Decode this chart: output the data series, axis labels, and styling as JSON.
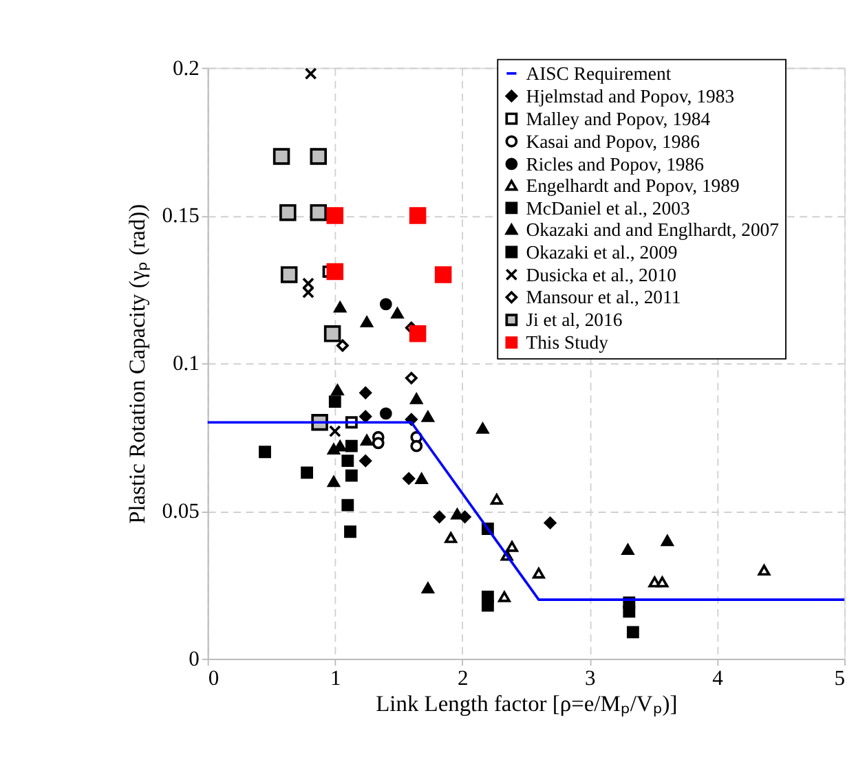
{
  "chart_data": {
    "type": "scatter",
    "xlabel": "Link Length factor [ρ=e/Mₚ/Vₚ)]",
    "ylabel": "Plastic Rotation Capacity (γₚ (rad))",
    "xlim": [
      0,
      5
    ],
    "xticks": [
      0,
      1,
      2,
      3,
      4,
      5
    ],
    "ylim": [
      0,
      0.2
    ],
    "yticks": [
      0,
      0.05,
      0.1,
      0.15,
      0.2
    ],
    "grid": true,
    "legend": "top right",
    "series": [
      {
        "name": "AISC Requirement",
        "type": "line",
        "color": "#0000ff",
        "marker": "none",
        "line_style": "solid",
        "x": [
          0,
          1.6,
          2.6,
          5
        ],
        "values": [
          0.08,
          0.08,
          0.02,
          0.02
        ]
      },
      {
        "name": "Hjelmstad and Popov, 1983",
        "color": "#000000",
        "marker": "diamond",
        "x": [
          1.24,
          1.24,
          1.24,
          1.6,
          1.58,
          1.82,
          2.02,
          2.69
        ],
        "values": [
          0.09,
          0.082,
          0.067,
          0.081,
          0.061,
          0.048,
          0.048,
          0.046
        ]
      },
      {
        "name": "Malley and Popov, 1984",
        "color": "#ffffff",
        "marker": "square",
        "x": [
          1.13,
          0.95
        ],
        "values": [
          0.08,
          0.131
        ]
      },
      {
        "name": "Kasai and Popov, 1986",
        "color": "#ffffff",
        "marker": "circle",
        "x": [
          1.34,
          1.34,
          1.64,
          1.64
        ],
        "values": [
          0.075,
          0.073,
          0.075,
          0.072
        ]
      },
      {
        "name": "Ricles and Popov, 1986",
        "color": "#000000",
        "marker": "circle",
        "x": [
          1.4,
          1.4
        ],
        "values": [
          0.12,
          0.083
        ]
      },
      {
        "name": "Engelhardt and Popov, 1989",
        "color": "#ffffff",
        "marker": "triangle",
        "x": [
          1.91,
          2.27,
          2.39,
          2.35,
          2.6,
          2.33,
          3.51,
          3.57,
          4.37
        ],
        "values": [
          0.041,
          0.054,
          0.038,
          0.035,
          0.029,
          0.021,
          0.026,
          0.026,
          0.03
        ]
      },
      {
        "name": "McDaniel et al., 2003",
        "color": "#000000",
        "marker": "square",
        "x": [
          0.45,
          0.78,
          2.2,
          2.2,
          2.2,
          3.31,
          3.31
        ],
        "values": [
          0.07,
          0.063,
          0.044,
          0.021,
          0.018,
          0.019,
          0.016
        ]
      },
      {
        "name": "Okazaki and and Englhardt, 2007",
        "color": "#000000",
        "marker": "triangle",
        "x": [
          1.04,
          1.25,
          1.49,
          1.02,
          1.64,
          1.73,
          2.16,
          0.99,
          1.04,
          1.25,
          0.99,
          1.68,
          1.96,
          1.73,
          3.3,
          3.61
        ],
        "values": [
          0.119,
          0.114,
          0.117,
          0.091,
          0.088,
          0.082,
          0.078,
          0.071,
          0.072,
          0.074,
          0.06,
          0.061,
          0.049,
          0.024,
          0.037,
          0.04
        ]
      },
      {
        "name": "Okazaki et al., 2009",
        "color": "#000000",
        "marker": "square",
        "x": [
          1.13,
          1.1,
          1.13,
          1.1,
          1.12,
          3.34,
          1.0
        ],
        "values": [
          0.072,
          0.067,
          0.062,
          0.052,
          0.043,
          0.009,
          0.087
        ]
      },
      {
        "name": "Dusicka et al., 2010",
        "color": "#000000",
        "marker": "cross",
        "x": [
          0.81,
          0.79,
          0.79,
          1.0
        ],
        "values": [
          0.198,
          0.127,
          0.124,
          0.077
        ]
      },
      {
        "name": "Mansour et al., 2011",
        "color": "#ffffff",
        "marker": "diamond",
        "x": [
          1.06,
          1.6,
          1.6
        ],
        "values": [
          0.106,
          0.112,
          0.095
        ]
      },
      {
        "name": "Ji et al, 2016",
        "color": "#c0c0c0",
        "marker": "square",
        "x": [
          0.58,
          0.87,
          0.63,
          0.87,
          0.64,
          0.98,
          0.88
        ],
        "values": [
          0.17,
          0.17,
          0.151,
          0.151,
          0.13,
          0.11,
          0.08
        ]
      },
      {
        "name": "This Study",
        "color": "#ff0000",
        "marker": "square",
        "x": [
          1.0,
          1.65,
          1.0,
          1.85,
          1.65
        ],
        "values": [
          0.15,
          0.15,
          0.131,
          0.13,
          0.11
        ]
      }
    ]
  }
}
